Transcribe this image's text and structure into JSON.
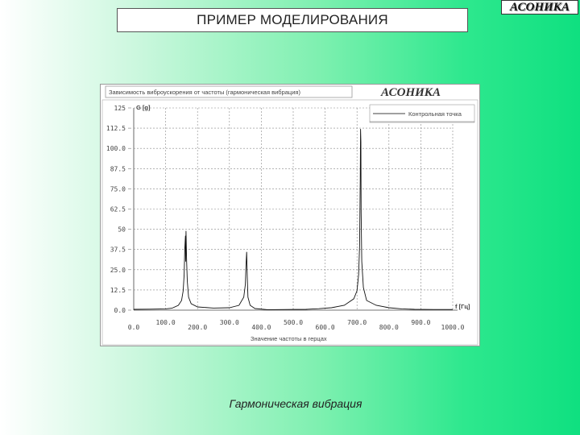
{
  "slide": {
    "title": "ПРИМЕР МОДЕЛИРОВАНИЯ",
    "brand": "АСОНИКА",
    "caption": "Гармоническая вибрация"
  },
  "chart_data": {
    "type": "line",
    "title": "Зависимость виброускорения от частоты (гармоническая вибрация)",
    "brand": "АСОНИКА",
    "xlabel": "Значение частоты в герцах",
    "ylabel": "G [g]",
    "x_unit_label": "f [Гц]",
    "xlim": [
      0,
      1000
    ],
    "ylim": [
      0,
      125
    ],
    "x_ticks": [
      "0.0",
      "100.0",
      "200.0",
      "300.0",
      "400.0",
      "500.0",
      "600.0",
      "700.0",
      "800.0",
      "900.0",
      "1000.0"
    ],
    "y_ticks": [
      "0.0",
      "12.5",
      "25.0",
      "37.5",
      "50",
      "62.5",
      "75.0",
      "87.5",
      "100.0",
      "112.5",
      "125"
    ],
    "grid": true,
    "legend": {
      "placement": "top-right",
      "entries": [
        "Контрольная точка"
      ]
    },
    "series": [
      {
        "name": "Контрольная точка",
        "points": [
          [
            0,
            0.5
          ],
          [
            50,
            0.6
          ],
          [
            100,
            0.8
          ],
          [
            120,
            1.2
          ],
          [
            140,
            3
          ],
          [
            150,
            6
          ],
          [
            155,
            12
          ],
          [
            158,
            22
          ],
          [
            160,
            38
          ],
          [
            162,
            46
          ],
          [
            163,
            30
          ],
          [
            164,
            49
          ],
          [
            166,
            30
          ],
          [
            168,
            18
          ],
          [
            172,
            8
          ],
          [
            180,
            4
          ],
          [
            200,
            2
          ],
          [
            250,
            1.3
          ],
          [
            300,
            1.5
          ],
          [
            330,
            3
          ],
          [
            345,
            8
          ],
          [
            350,
            16
          ],
          [
            352,
            28
          ],
          [
            354,
            36
          ],
          [
            356,
            20
          ],
          [
            358,
            8
          ],
          [
            365,
            3
          ],
          [
            380,
            1
          ],
          [
            420,
            0.3
          ],
          [
            480,
            0.4
          ],
          [
            540,
            0.5
          ],
          [
            580,
            0.9
          ],
          [
            620,
            1.5
          ],
          [
            660,
            3
          ],
          [
            690,
            7
          ],
          [
            700,
            12
          ],
          [
            705,
            22
          ],
          [
            708,
            40
          ],
          [
            710,
            80
          ],
          [
            711,
            112
          ],
          [
            712,
            104
          ],
          [
            713,
            60
          ],
          [
            715,
            30
          ],
          [
            720,
            14
          ],
          [
            730,
            6
          ],
          [
            760,
            3
          ],
          [
            800,
            1.5
          ],
          [
            840,
            0.8
          ],
          [
            880,
            0.5
          ],
          [
            940,
            0.4
          ],
          [
            1000,
            0.4
          ]
        ]
      }
    ]
  }
}
